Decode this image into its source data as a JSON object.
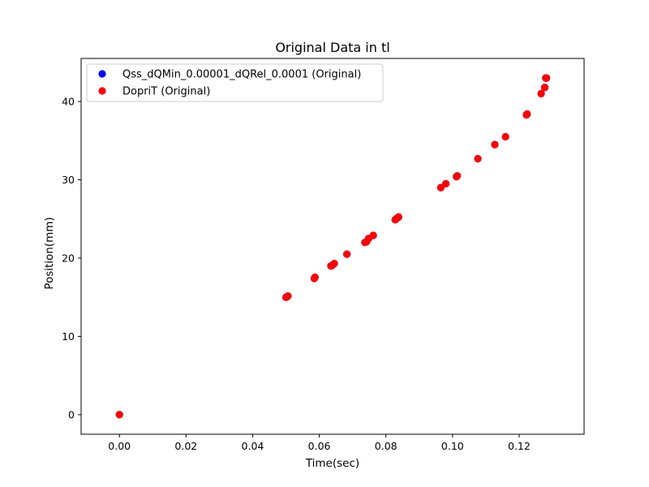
{
  "chart_data": {
    "type": "scatter",
    "title": "Original Data in tl",
    "xlabel": "Time(sec)",
    "ylabel": "Position(mm)",
    "xlim": [
      -0.0115,
      0.1395
    ],
    "ylim": [
      -2.5,
      45.5
    ],
    "x_ticks": [
      0.0,
      0.02,
      0.04,
      0.06,
      0.08,
      0.1,
      0.12
    ],
    "x_tick_labels": [
      "0.00",
      "0.02",
      "0.04",
      "0.06",
      "0.08",
      "0.10",
      "0.12"
    ],
    "y_ticks": [
      0,
      10,
      20,
      30,
      40
    ],
    "y_tick_labels": [
      "0",
      "10",
      "20",
      "30",
      "40"
    ],
    "grid": false,
    "legend_position": "top-left",
    "series": [
      {
        "name": "Qss_dQMin_0.00001_dQRel_0.0001 (Original)",
        "color": "#0000ff",
        "x": [
          0.0,
          0.05,
          0.0503,
          0.0506,
          0.0585,
          0.0587,
          0.0635,
          0.0638,
          0.0645,
          0.0683,
          0.0737,
          0.0742,
          0.0748,
          0.0762,
          0.0828,
          0.0832,
          0.0838,
          0.0965,
          0.098,
          0.1012,
          0.1014,
          0.1076,
          0.1127,
          0.1159,
          0.1222,
          0.1224,
          0.1266,
          0.1277,
          0.128,
          0.1282
        ],
        "y": [
          0.0,
          15.0,
          15.05,
          15.15,
          17.4,
          17.55,
          19.0,
          19.05,
          19.3,
          20.5,
          22.0,
          22.1,
          22.5,
          22.9,
          24.9,
          25.05,
          25.25,
          29.0,
          29.5,
          30.4,
          30.5,
          32.7,
          34.5,
          35.5,
          38.3,
          38.4,
          41.0,
          41.8,
          43.0,
          43.0
        ]
      },
      {
        "name": "DopriT (Original)",
        "color": "#ff0000",
        "x": [
          0.0,
          0.05,
          0.0503,
          0.0506,
          0.0585,
          0.0587,
          0.0635,
          0.0638,
          0.0645,
          0.0683,
          0.0737,
          0.0742,
          0.0748,
          0.0762,
          0.0828,
          0.0832,
          0.0838,
          0.0965,
          0.098,
          0.1012,
          0.1014,
          0.1076,
          0.1127,
          0.1159,
          0.1222,
          0.1224,
          0.1266,
          0.1277,
          0.128,
          0.1282
        ],
        "y": [
          0.0,
          15.0,
          15.05,
          15.15,
          17.4,
          17.55,
          19.0,
          19.05,
          19.3,
          20.5,
          22.0,
          22.1,
          22.5,
          22.9,
          24.9,
          25.05,
          25.25,
          29.0,
          29.5,
          30.4,
          30.5,
          32.7,
          34.5,
          35.5,
          38.3,
          38.4,
          41.0,
          41.8,
          43.0,
          43.0
        ]
      }
    ]
  }
}
